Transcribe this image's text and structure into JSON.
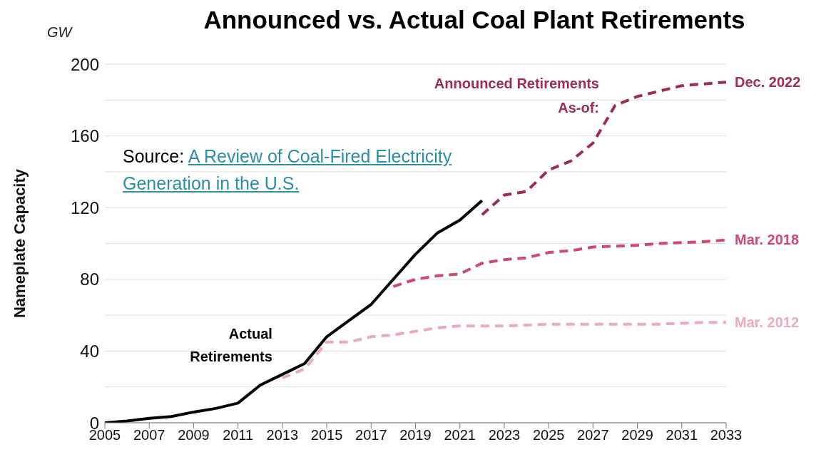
{
  "chart_data": {
    "type": "line",
    "title": "Announced vs. Actual Coal Plant Retirements",
    "ylabel": "Nameplate Capacity",
    "annotations": [
      "GW",
      "Announced Retirements As-of:",
      "Source: A Review of Coal-Fired Electricity Generation in the U.S."
    ],
    "xlim": [
      2005,
      2033
    ],
    "xticks": [
      2005,
      2007,
      2009,
      2011,
      2013,
      2015,
      2017,
      2019,
      2021,
      2023,
      2025,
      2027,
      2029,
      2031,
      2033
    ],
    "ylim": [
      0,
      200
    ],
    "yticks": [
      0,
      {
        "value": 20,
        "label": null
      },
      40,
      {
        "value": 60,
        "label": null
      },
      80,
      {
        "value": 100,
        "label": null
      },
      120,
      {
        "value": 140,
        "label": null
      },
      160,
      {
        "value": 180,
        "label": null
      },
      200
    ],
    "grid": "y",
    "legend": false,
    "marker": "none",
    "series": [
      {
        "name": "Actual Retirements",
        "color": "#000000",
        "line_style": "solid",
        "x": [
          2005,
          2006,
          2007,
          2008,
          2009,
          2010,
          2011,
          2012,
          2013,
          2014,
          2015,
          2016,
          2017,
          2018,
          2019,
          2020,
          2021,
          2022
        ],
        "values": [
          0,
          1,
          2.5,
          3.5,
          6,
          8,
          11,
          21,
          27,
          33,
          48,
          57,
          66,
          80,
          94,
          106,
          113,
          124
        ]
      },
      {
        "name": "Dec. 2022",
        "color": "#9e2a55",
        "line_style": "dashed",
        "x": [
          2022,
          2023,
          2024,
          2025,
          2026,
          2027,
          2028,
          2029,
          2030,
          2031,
          2032,
          2033
        ],
        "values": [
          116,
          127,
          129,
          141,
          146,
          156,
          177,
          182,
          185,
          188,
          189,
          190
        ]
      },
      {
        "name": "Mar. 2018",
        "color": "#d04677",
        "line_style": "dashed",
        "x": [
          2018,
          2019,
          2020,
          2021,
          2022,
          2023,
          2024,
          2025,
          2026,
          2027,
          2028,
          2029,
          2030,
          2031,
          2032,
          2033
        ],
        "values": [
          76,
          80,
          82,
          83,
          89,
          91,
          92,
          95,
          96,
          98,
          98.5,
          99,
          100,
          100.5,
          101,
          102
        ]
      },
      {
        "name": "Mar. 2012",
        "color": "#eaaac1",
        "line_style": "dashed",
        "x": [
          2013,
          2014,
          2015,
          2016,
          2017,
          2018,
          2019,
          2020,
          2021,
          2022,
          2023,
          2024,
          2025,
          2026,
          2027,
          2028,
          2029,
          2030,
          2031,
          2032,
          2033
        ],
        "values": [
          25,
          30,
          45,
          45,
          48,
          49,
          51,
          53,
          54,
          54,
          54,
          54.5,
          55,
          55,
          55,
          55,
          55,
          55,
          55.5,
          56,
          56
        ]
      }
    ]
  }
}
